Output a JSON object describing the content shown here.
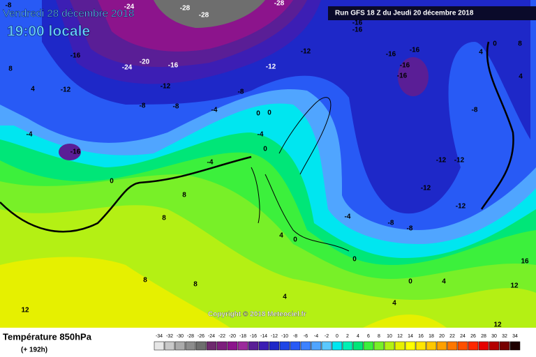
{
  "header": {
    "date": "Vendredi 28 décembre 2018",
    "time": "19:00 locale",
    "run": "Run GFS 18 Z du Jeudi 20 décembre 2018"
  },
  "map": {
    "labels": [
      "-8",
      "-24",
      "-28",
      "-28",
      "-28",
      "-16",
      "-16",
      "-16",
      "-24",
      "-20",
      "-16",
      "-12",
      "-12",
      "-8",
      "-8",
      "-4",
      "-16",
      "-4",
      "0",
      "0",
      "-4",
      "0",
      "-4",
      "0",
      "-12",
      "-12",
      "-8",
      "-16",
      "-16",
      "-16",
      "-16",
      "-8",
      "-12",
      "-12",
      "-12",
      "-12",
      "-8",
      "-8",
      "4",
      "0",
      "8",
      "4",
      "8",
      "8",
      "4",
      "0",
      "8",
      "8",
      "4",
      "4",
      "12",
      "12",
      "12",
      "16",
      "0",
      "4",
      "-4",
      "0",
      "8",
      "4"
    ]
  },
  "copyright": "Copyright © 2018 Meteociel.fr",
  "legend": {
    "title": "Température 850hPa",
    "lead": "(+ 192h)",
    "values": [
      -34,
      -32,
      -30,
      -28,
      -26,
      -24,
      -22,
      -20,
      -18,
      -16,
      -14,
      -12,
      -10,
      -8,
      -6,
      -4,
      -2,
      0,
      2,
      4,
      6,
      8,
      10,
      12,
      14,
      16,
      18,
      20,
      22,
      24,
      26,
      28,
      30,
      32,
      34
    ],
    "colors": [
      "#e6e6e6",
      "#c8c8c8",
      "#aaaaaa",
      "#8c8c8c",
      "#6e6e6e",
      "#6e2a6e",
      "#7d1f7d",
      "#8c148c",
      "#9c2a9c",
      "#5a1e96",
      "#3c1eb4",
      "#1e28c8",
      "#1e46e6",
      "#285af5",
      "#3c82ff",
      "#50a5ff",
      "#5ac8ff",
      "#00e6f0",
      "#00f0b4",
      "#00e678",
      "#3cf03c",
      "#78f028",
      "#b4f014",
      "#e6f000",
      "#ffff00",
      "#ffe600",
      "#ffc800",
      "#ffa000",
      "#ff7800",
      "#ff5000",
      "#ff2800",
      "#e60000",
      "#b40000",
      "#780000",
      "#1e0000"
    ]
  }
}
